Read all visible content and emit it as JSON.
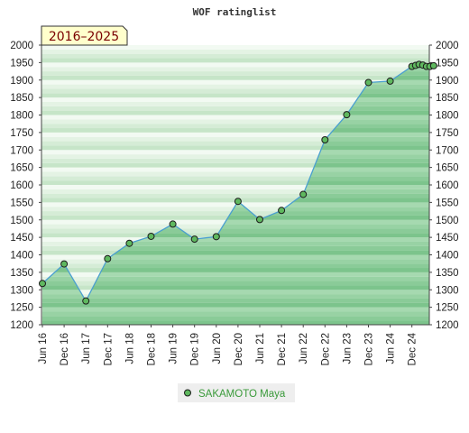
{
  "chart_data": {
    "type": "area",
    "title": "WOF ratinglist",
    "period_label": "2016–2025",
    "ylim": [
      1200,
      2000
    ],
    "y_ticks": [
      1200,
      1250,
      1300,
      1350,
      1400,
      1450,
      1500,
      1550,
      1600,
      1650,
      1700,
      1750,
      1800,
      1850,
      1900,
      1950,
      2000
    ],
    "x_tick_labels": [
      "Jun 16",
      "Dec 16",
      "Jun 17",
      "Dec 17",
      "Jun 18",
      "Dec 18",
      "Jun 19",
      "Dec 19",
      "Jun 20",
      "Dec 20",
      "Jun 21",
      "Dec 21",
      "Jun 22",
      "Dec 22",
      "Jun 23",
      "Dec 23",
      "Jun 24",
      "Dec 24"
    ],
    "series": [
      {
        "name": "SAKAMOTO Maya",
        "color": "#2e8b2e",
        "line_color": "#4a9fd0",
        "x": [
          0,
          1,
          2,
          3,
          4,
          5,
          6,
          7,
          8,
          9,
          10,
          11,
          12,
          13,
          14,
          15,
          16,
          17,
          17.17,
          17.33,
          17.5,
          17.67,
          17.83,
          18
        ],
        "values": [
          1318,
          1374,
          1268,
          1389,
          1433,
          1453,
          1488,
          1445,
          1452,
          1553,
          1501,
          1527,
          1573,
          1729,
          1801,
          1893,
          1897,
          1939,
          1942,
          1945,
          1943,
          1939,
          1939,
          1941
        ]
      }
    ],
    "grid": true,
    "legend_position": "bottom-center"
  }
}
